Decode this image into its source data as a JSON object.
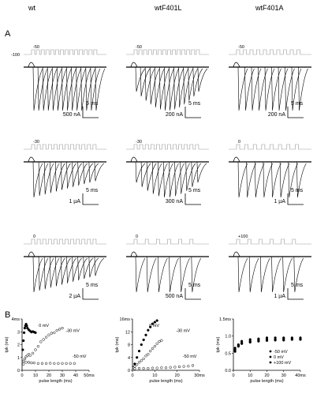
{
  "figure": {
    "columns": [
      "wt",
      "wtF401L",
      "wtF401A"
    ],
    "panel_a_label": "A",
    "panel_b_label": "B"
  },
  "traces": {
    "rows": [
      [
        {
          "hold_label": "-100",
          "step_label": "-50",
          "time_scale": "5 ms",
          "current_scale": "500 nA",
          "peak_curve": "flat",
          "pulses": 14
        },
        {
          "hold_label": "",
          "step_label": "-50",
          "time_scale": "5 ms",
          "current_scale": "200 nA",
          "peak_curve": "rise",
          "pulses": 14
        },
        {
          "hold_label": "",
          "step_label": "-50",
          "time_scale": "5 ms",
          "current_scale": "200 nA",
          "peak_curve": "flat",
          "pulses": 10
        }
      ],
      [
        {
          "hold_label": "",
          "step_label": "-30",
          "time_scale": "5 ms",
          "current_scale": "1 µA",
          "peak_curve": "decline",
          "pulses": 12
        },
        {
          "hold_label": "",
          "step_label": "-30",
          "time_scale": "5 ms",
          "current_scale": "300 nA",
          "peak_curve": "rise",
          "pulses": 12
        },
        {
          "hold_label": "",
          "step_label": "0",
          "time_scale": "5 ms",
          "current_scale": "1 µA",
          "peak_curve": "flat",
          "pulses": 8
        }
      ],
      [
        {
          "hold_label": "",
          "step_label": "0",
          "time_scale": "5 ms",
          "current_scale": "2 µA",
          "peak_curve": "decline",
          "pulses": 12
        },
        {
          "hold_label": "",
          "step_label": "0",
          "time_scale": "5 ms",
          "current_scale": "500 nA",
          "peak_curve": "flat",
          "pulses": 6
        },
        {
          "hold_label": "",
          "step_label": "+100",
          "time_scale": "5 ms",
          "current_scale": "1 µA",
          "peak_curve": "flat",
          "pulses": 6
        }
      ]
    ]
  },
  "chart_data": [
    {
      "type": "scatter",
      "title": "",
      "xlabel": "pulse length (ms)",
      "ylabel": "tpk (ms)",
      "xlim": [
        0,
        50
      ],
      "ylim": [
        0,
        4.5
      ],
      "xticks": [
        "0",
        "10",
        "20",
        "30",
        "40",
        "50ms"
      ],
      "yticks": [
        "0",
        "1",
        "2",
        "3",
        "4ms"
      ],
      "legend": "none",
      "annotations": [
        "0 mV",
        "-30 mV",
        "-50 mV"
      ],
      "series": [
        {
          "name": "0 mV",
          "marker": "filled",
          "x": [
            0.5,
            1,
            1.5,
            2,
            2.5,
            3,
            3.5,
            4,
            5,
            6,
            7,
            8,
            9,
            10
          ],
          "y": [
            1.8,
            2.6,
            3.3,
            3.7,
            3.9,
            4.05,
            3.9,
            3.7,
            3.55,
            3.45,
            3.35,
            3.4,
            3.35,
            3.3
          ]
        },
        {
          "name": "-30 mV",
          "marker": "open",
          "x": [
            1,
            2,
            3,
            4,
            5,
            6,
            8,
            10,
            12,
            14,
            16,
            18,
            20,
            22,
            24,
            26,
            28,
            30
          ],
          "y": [
            0.8,
            1.0,
            1.2,
            1.3,
            1.4,
            1.3,
            1.5,
            1.8,
            2.1,
            2.5,
            2.7,
            2.9,
            3.1,
            3.25,
            3.3,
            3.5,
            3.6,
            3.7
          ]
        },
        {
          "name": "-50 mV",
          "marker": "open",
          "x": [
            1,
            3,
            5,
            7,
            9,
            12,
            15,
            18,
            21,
            24,
            27,
            30,
            33,
            36,
            39
          ],
          "y": [
            0.55,
            0.7,
            0.7,
            0.65,
            0.65,
            0.6,
            0.6,
            0.6,
            0.62,
            0.6,
            0.6,
            0.6,
            0.6,
            0.6,
            0.6
          ]
        }
      ]
    },
    {
      "type": "scatter",
      "title": "",
      "xlabel": "pulse length (ms)",
      "ylabel": "tpk (ms)",
      "xlim": [
        0,
        30
      ],
      "ylim": [
        0,
        16
      ],
      "xticks": [
        "0",
        "10",
        "20",
        "30ms"
      ],
      "yticks": [
        "0",
        "4",
        "8",
        "12",
        "16ms"
      ],
      "legend": "none",
      "annotations": [
        "0 mV",
        "-30 mV",
        "-50 mV"
      ],
      "series": [
        {
          "name": "0 mV",
          "marker": "filled",
          "x": [
            0.5,
            1,
            2,
            3,
            4,
            5,
            6,
            7,
            8,
            9,
            10,
            11
          ],
          "y": [
            1,
            2,
            4,
            6,
            8,
            9.5,
            11,
            12.5,
            13.5,
            14.5,
            15,
            15.5
          ]
        },
        {
          "name": "-30 mV",
          "marker": "open",
          "x": [
            0.5,
            1,
            2,
            3,
            4,
            5,
            6,
            7,
            8,
            9,
            10,
            11,
            12,
            13
          ],
          "y": [
            0.8,
            1.2,
            1.8,
            2.5,
            3,
            3.6,
            4.5,
            5,
            6,
            6.8,
            7.5,
            8.3,
            9,
            9.3
          ]
        },
        {
          "name": "-50 mV",
          "marker": "open",
          "x": [
            1,
            3,
            5,
            7,
            9,
            11,
            13,
            15,
            17,
            19,
            21,
            23,
            25,
            27
          ],
          "y": [
            0.5,
            0.6,
            0.6,
            0.6,
            0.7,
            0.7,
            0.8,
            0.8,
            0.9,
            1.0,
            1.1,
            1.2,
            1.3,
            1.5
          ]
        }
      ]
    },
    {
      "type": "scatter",
      "title": "",
      "xlabel": "pulse length (ms)",
      "ylabel": "tpk (ms)",
      "xlim": [
        0,
        40
      ],
      "ylim": [
        0,
        1.5
      ],
      "xticks": [
        "0",
        "10",
        "20",
        "30",
        "40ms"
      ],
      "yticks": [
        "0.0",
        "0.5",
        "1.0",
        "1.5ms"
      ],
      "legend": "bottom-right",
      "annotations": [],
      "series": [
        {
          "name": "-50 mV",
          "marker": "filled",
          "x": [
            1,
            3,
            5,
            10,
            15,
            20,
            25,
            30,
            35,
            40
          ],
          "y": [
            0.65,
            0.75,
            0.85,
            0.9,
            0.92,
            0.95,
            0.95,
            0.95,
            0.95,
            0.95
          ]
        },
        {
          "name": "0 mV",
          "marker": "filled",
          "x": [
            1,
            3,
            5,
            10,
            15,
            20,
            25,
            30,
            35,
            40
          ],
          "y": [
            0.6,
            0.72,
            0.8,
            0.85,
            0.88,
            0.9,
            0.9,
            0.92,
            0.92,
            0.92
          ]
        },
        {
          "name": "+100 mV",
          "marker": "filled",
          "x": [
            1,
            3,
            5,
            10,
            15,
            20,
            25,
            30,
            35,
            40
          ],
          "y": [
            0.55,
            0.7,
            0.78,
            0.82,
            0.85,
            0.87,
            0.88,
            0.88,
            0.9,
            0.9
          ]
        }
      ]
    }
  ]
}
